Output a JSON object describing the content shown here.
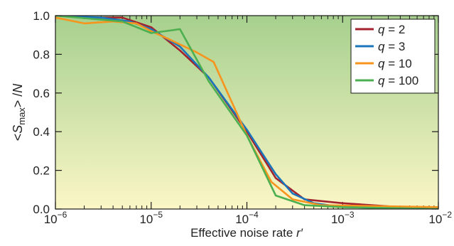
{
  "chart_data": {
    "type": "line",
    "xscale": "log",
    "xlim": [
      1e-06,
      0.01
    ],
    "ylim": [
      0.0,
      1.0
    ],
    "grid": false,
    "legend_position": "top-right",
    "xlabel_main": "Effective noise rate ",
    "xlabel_var": "r′",
    "ylabel_prefix": "<",
    "ylabel_S": "S",
    "ylabel_sub": "max",
    "ylabel_suffix": "> /",
    "ylabel_N": "N",
    "x_ticks": [
      {
        "value": 1e-06,
        "base": "10",
        "exp": "−6"
      },
      {
        "value": 1e-05,
        "base": "10",
        "exp": "−5"
      },
      {
        "value": 0.0001,
        "base": "10",
        "exp": "−4"
      },
      {
        "value": 0.001,
        "base": "10",
        "exp": "−3"
      },
      {
        "value": 0.01,
        "base": "10",
        "exp": "−2"
      }
    ],
    "y_ticks": [
      "0.0",
      "0.2",
      "0.4",
      "0.6",
      "0.8",
      "1.0"
    ],
    "y_tick_values": [
      0.0,
      0.2,
      0.4,
      0.6,
      0.8,
      1.0
    ],
    "background_gradient": {
      "top": "#a6d08e",
      "bottom": "#fbf6c6"
    },
    "series": [
      {
        "name_var": "q",
        "name_rest": " = 2",
        "color": "#a3222e",
        "x": [
          1e-06,
          2.5e-06,
          5e-06,
          1e-05,
          2e-05,
          4e-05,
          0.0001,
          0.0002,
          0.0004,
          0.001,
          0.004,
          0.01
        ],
        "y": [
          1.0,
          0.99,
          0.99,
          0.94,
          0.82,
          0.68,
          0.4,
          0.16,
          0.05,
          0.03,
          0.01,
          0.0
        ]
      },
      {
        "name_var": "q",
        "name_rest": " = 3",
        "color": "#1b75bb",
        "x": [
          1e-06,
          3e-06,
          6e-06,
          1e-05,
          2e-05,
          4e-05,
          0.0001,
          0.0002,
          0.0003,
          0.0005,
          0.001,
          0.01
        ],
        "y": [
          1.0,
          0.99,
          0.97,
          0.93,
          0.84,
          0.68,
          0.41,
          0.18,
          0.08,
          0.03,
          0.01,
          0.0
        ]
      },
      {
        "name_var": "q",
        "name_rest": " = 10",
        "color": "#f7941d",
        "x": [
          1e-06,
          2e-06,
          4e-06,
          7e-06,
          1e-05,
          1.5e-05,
          3e-05,
          4.5e-05,
          0.0001,
          0.00018,
          0.0003,
          0.0006,
          0.01
        ],
        "y": [
          0.99,
          0.96,
          0.97,
          0.96,
          0.92,
          0.88,
          0.81,
          0.76,
          0.38,
          0.14,
          0.05,
          0.02,
          0.01
        ]
      },
      {
        "name_var": "q",
        "name_rest": " = 100",
        "color": "#4caf50",
        "x": [
          1e-06,
          5e-06,
          1e-05,
          2e-05,
          4e-05,
          0.0001,
          0.0002,
          0.0004,
          0.001,
          0.01
        ],
        "y": [
          1.0,
          0.97,
          0.91,
          0.93,
          0.66,
          0.38,
          0.07,
          0.02,
          0.01,
          0.0
        ]
      }
    ]
  }
}
